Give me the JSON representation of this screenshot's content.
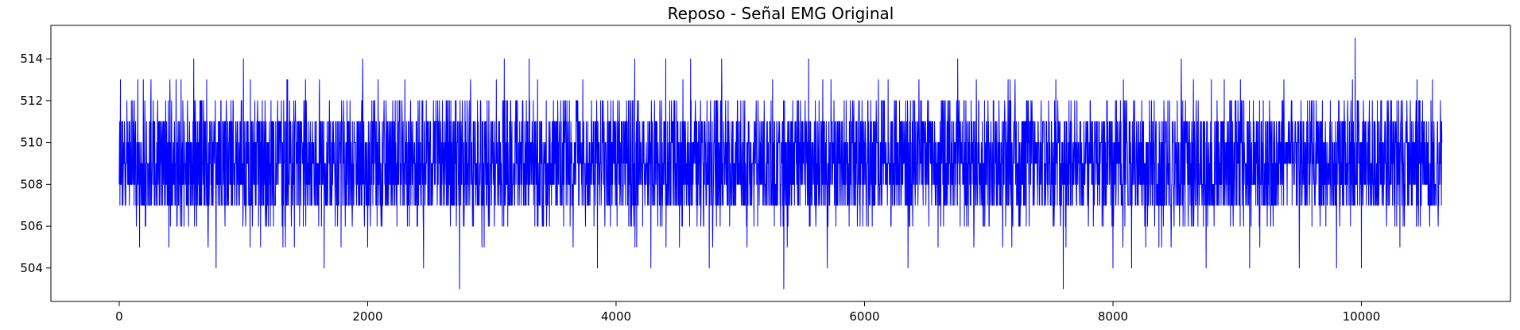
{
  "chart_data": {
    "type": "line",
    "title": "Reposo - Señal EMG Original",
    "xlabel": "",
    "ylabel": "",
    "xlim": [
      -550,
      11200
    ],
    "ylim": [
      502.4,
      515.6
    ],
    "x_ticks": [
      0,
      2000,
      4000,
      6000,
      8000,
      10000
    ],
    "x_tick_labels": [
      "0",
      "2000",
      "4000",
      "6000",
      "8000",
      "10000"
    ],
    "y_ticks": [
      504,
      506,
      508,
      510,
      512,
      514
    ],
    "y_tick_labels": [
      "504",
      "506",
      "508",
      "510",
      "512",
      "514"
    ],
    "grid": false,
    "legend": "none",
    "series": [
      {
        "name": "EMG",
        "color": "#0000ff",
        "n_samples": 10650,
        "x_start": 0,
        "x_end": 10650,
        "value_range": [
          503,
          515
        ],
        "core_band": [
          507,
          511
        ],
        "typical_peaks": [
          512,
          513
        ],
        "spikes": [
          {
            "x": 150,
            "value": 513
          },
          {
            "x": 400,
            "value": 505
          },
          {
            "x": 600,
            "value": 514
          },
          {
            "x": 780,
            "value": 504
          },
          {
            "x": 1000,
            "value": 514
          },
          {
            "x": 1350,
            "value": 513
          },
          {
            "x": 1500,
            "value": 513
          },
          {
            "x": 1650,
            "value": 504
          },
          {
            "x": 1960,
            "value": 514
          },
          {
            "x": 2000,
            "value": 505
          },
          {
            "x": 2300,
            "value": 513
          },
          {
            "x": 2450,
            "value": 504
          },
          {
            "x": 2740,
            "value": 503
          },
          {
            "x": 3100,
            "value": 514
          },
          {
            "x": 3300,
            "value": 514
          },
          {
            "x": 3850,
            "value": 504
          },
          {
            "x": 4150,
            "value": 514
          },
          {
            "x": 4280,
            "value": 504
          },
          {
            "x": 4400,
            "value": 514
          },
          {
            "x": 4600,
            "value": 514
          },
          {
            "x": 4750,
            "value": 504
          },
          {
            "x": 4850,
            "value": 514
          },
          {
            "x": 5350,
            "value": 503
          },
          {
            "x": 5550,
            "value": 514
          },
          {
            "x": 5700,
            "value": 504
          },
          {
            "x": 6350,
            "value": 504
          },
          {
            "x": 6750,
            "value": 514
          },
          {
            "x": 7600,
            "value": 503
          },
          {
            "x": 8000,
            "value": 504
          },
          {
            "x": 8150,
            "value": 504
          },
          {
            "x": 8550,
            "value": 514
          },
          {
            "x": 8750,
            "value": 504
          },
          {
            "x": 9100,
            "value": 504
          },
          {
            "x": 9500,
            "value": 504
          },
          {
            "x": 9800,
            "value": 504
          },
          {
            "x": 9950,
            "value": 515
          },
          {
            "x": 10000,
            "value": 504
          }
        ]
      }
    ]
  }
}
